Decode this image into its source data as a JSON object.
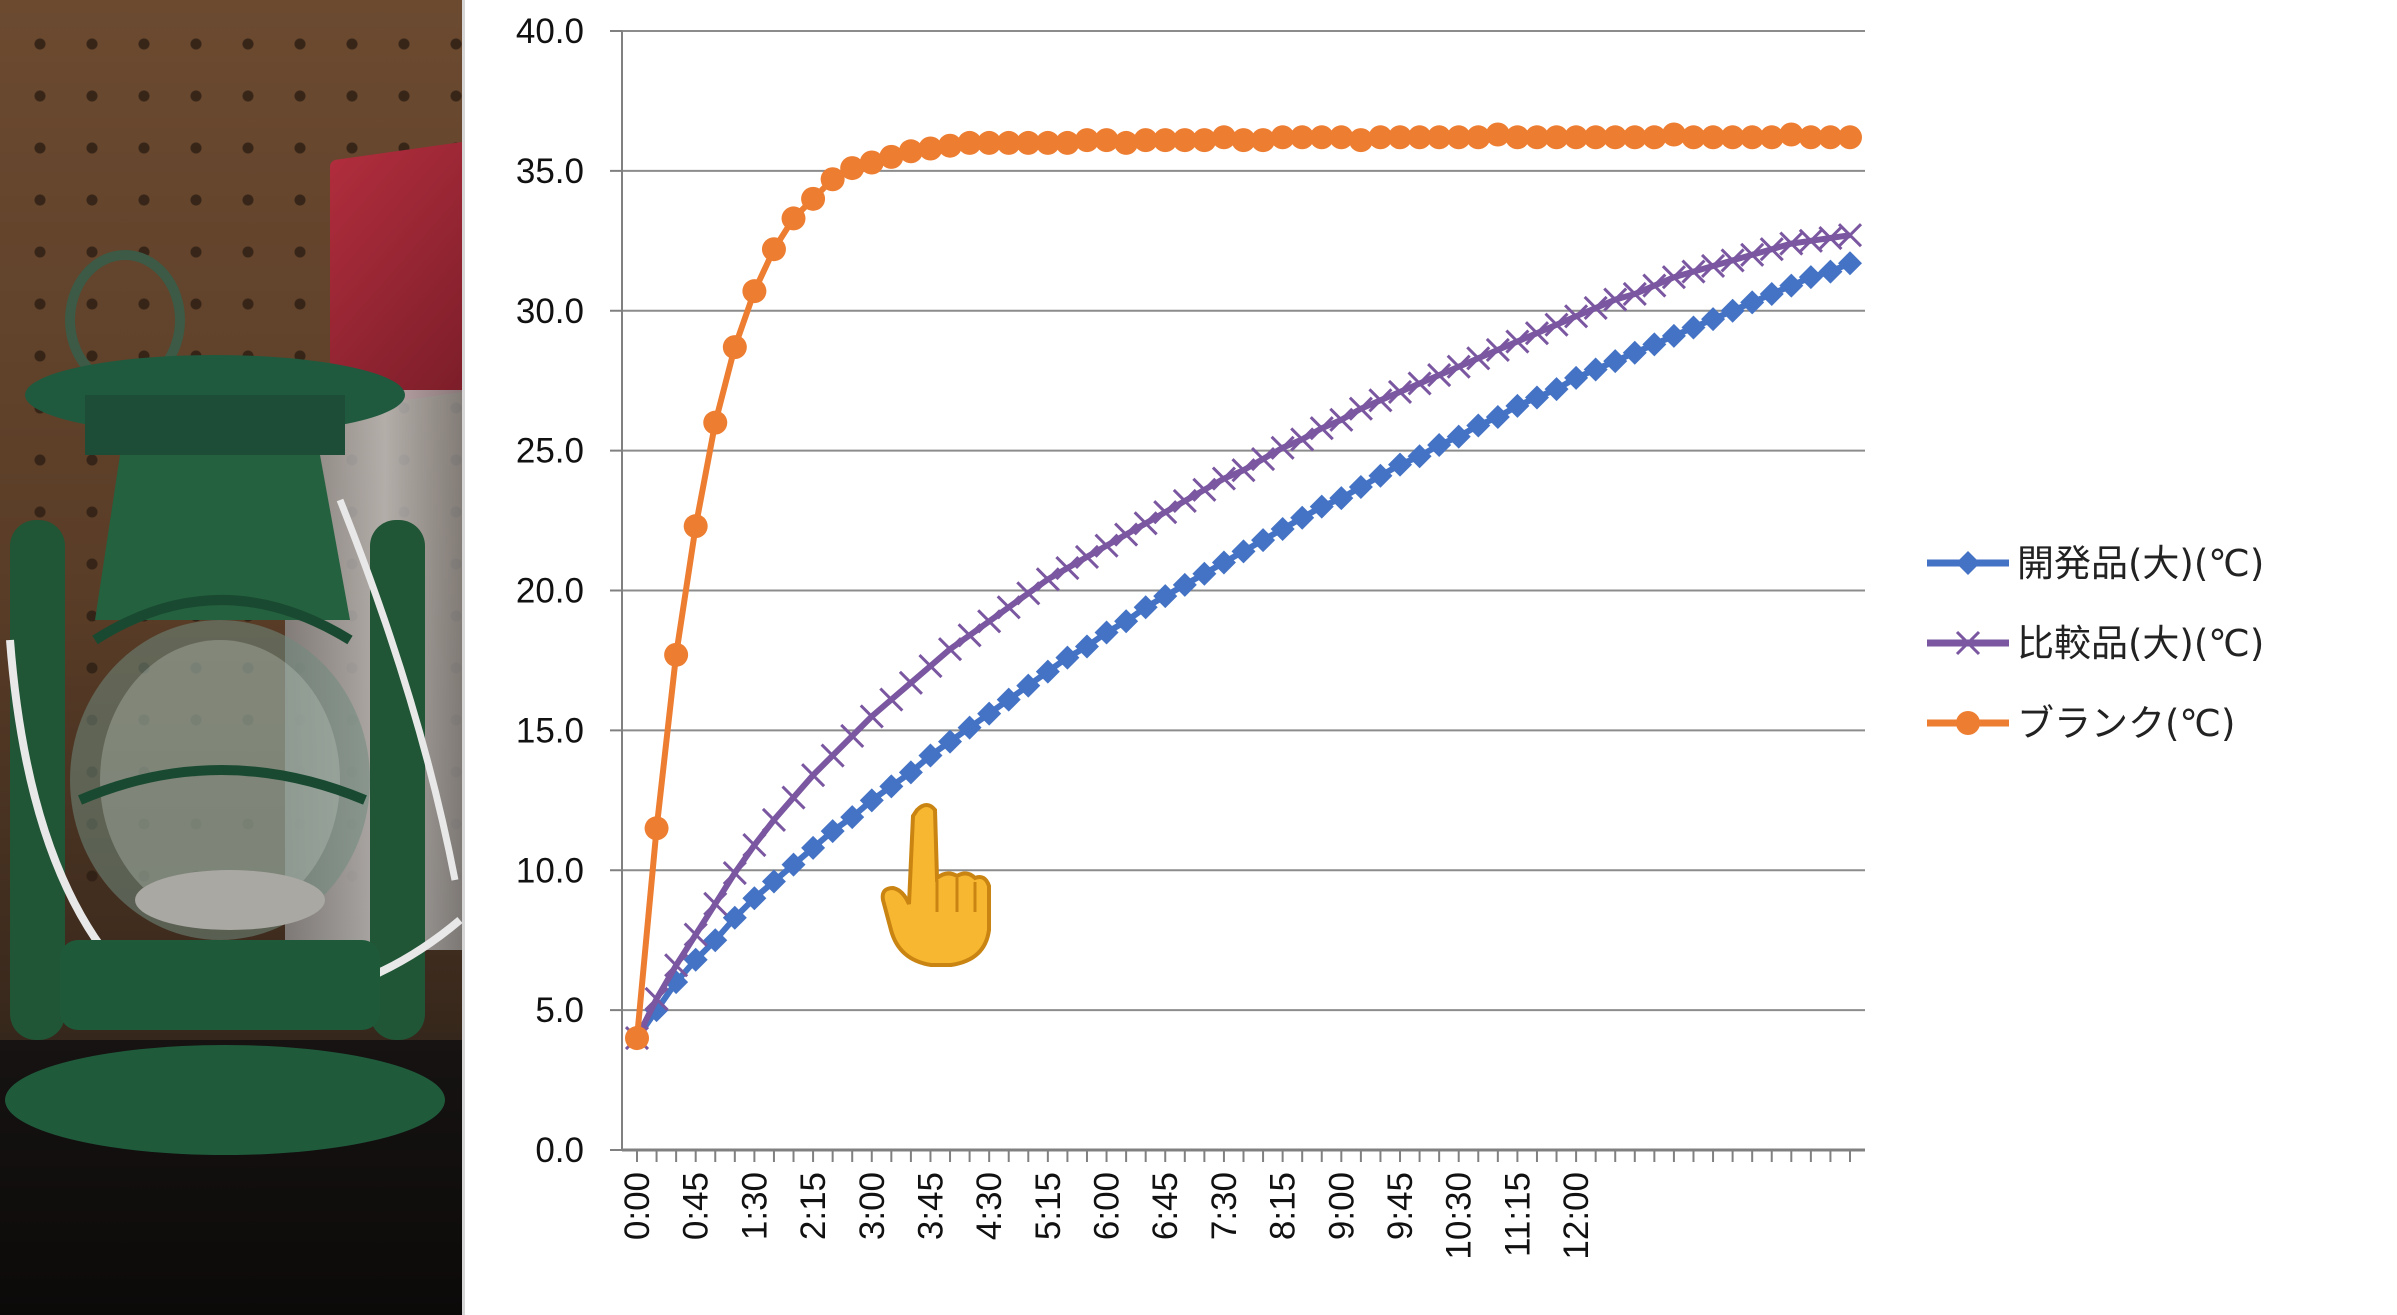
{
  "chart_data": {
    "type": "line",
    "title": "",
    "xlabel": "",
    "ylabel": "",
    "ylim": [
      0,
      40
    ],
    "yticks": [
      "0.0",
      "5.0",
      "10.0",
      "15.0",
      "20.0",
      "25.0",
      "30.0",
      "35.0",
      "40.0"
    ],
    "xtick_labels": [
      "0:00",
      "0:45",
      "1:30",
      "2:15",
      "3:00",
      "3:45",
      "4:30",
      "5:15",
      "6:00",
      "6:45",
      "7:30",
      "8:15",
      "9:00",
      "9:45",
      "10:30",
      "11:15",
      "12:00"
    ],
    "x_interval_minutes": 15,
    "grid": "horizontal",
    "legend_position": "right",
    "series": [
      {
        "name": "開発品(大)(℃)",
        "color": "#4472c4",
        "marker": "diamond",
        "values": [
          4.0,
          5.0,
          6.0,
          6.8,
          7.5,
          8.3,
          9.0,
          9.6,
          10.2,
          10.8,
          11.4,
          11.9,
          12.5,
          13.0,
          13.5,
          14.1,
          14.6,
          15.1,
          15.6,
          16.1,
          16.6,
          17.1,
          17.6,
          18.0,
          18.5,
          18.9,
          19.4,
          19.8,
          20.2,
          20.6,
          21.0,
          21.4,
          21.8,
          22.2,
          22.6,
          23.0,
          23.3,
          23.7,
          24.1,
          24.5,
          24.8,
          25.2,
          25.5,
          25.9,
          26.2,
          26.6,
          26.9,
          27.2,
          27.6,
          27.9,
          28.2,
          28.5,
          28.8,
          29.1,
          29.4,
          29.7,
          30.0,
          30.3,
          30.6,
          30.9,
          31.2,
          31.4,
          31.7
        ]
      },
      {
        "name": "比較品(大)(℃)",
        "color": "#7a57a0",
        "marker": "x",
        "values": [
          4.0,
          5.4,
          6.6,
          7.7,
          8.8,
          9.9,
          10.9,
          11.8,
          12.6,
          13.4,
          14.1,
          14.8,
          15.5,
          16.1,
          16.7,
          17.3,
          17.9,
          18.4,
          18.9,
          19.4,
          19.9,
          20.4,
          20.8,
          21.2,
          21.6,
          22.0,
          22.4,
          22.8,
          23.2,
          23.6,
          24.0,
          24.3,
          24.7,
          25.1,
          25.4,
          25.8,
          26.1,
          26.5,
          26.8,
          27.1,
          27.4,
          27.7,
          28.0,
          28.3,
          28.6,
          28.9,
          29.2,
          29.5,
          29.8,
          30.1,
          30.4,
          30.6,
          30.9,
          31.2,
          31.4,
          31.6,
          31.8,
          32.0,
          32.2,
          32.4,
          32.5,
          32.6,
          32.7
        ]
      },
      {
        "name": "ブランク(℃)",
        "color": "#ed7d31",
        "marker": "circle",
        "values": [
          4.0,
          11.5,
          17.7,
          22.3,
          26.0,
          28.7,
          30.7,
          32.2,
          33.3,
          34.0,
          34.7,
          35.1,
          35.3,
          35.5,
          35.7,
          35.8,
          35.9,
          36.0,
          36.0,
          36.0,
          36.0,
          36.0,
          36.0,
          36.1,
          36.1,
          36.0,
          36.1,
          36.1,
          36.1,
          36.1,
          36.2,
          36.1,
          36.1,
          36.2,
          36.2,
          36.2,
          36.2,
          36.1,
          36.2,
          36.2,
          36.2,
          36.2,
          36.2,
          36.2,
          36.3,
          36.2,
          36.2,
          36.2,
          36.2,
          36.2,
          36.2,
          36.2,
          36.2,
          36.3,
          36.2,
          36.2,
          36.2,
          36.2,
          36.2,
          36.3,
          36.2,
          36.2,
          36.2
        ]
      }
    ]
  },
  "icons": {
    "pointer": "pointing-hand-icon"
  }
}
